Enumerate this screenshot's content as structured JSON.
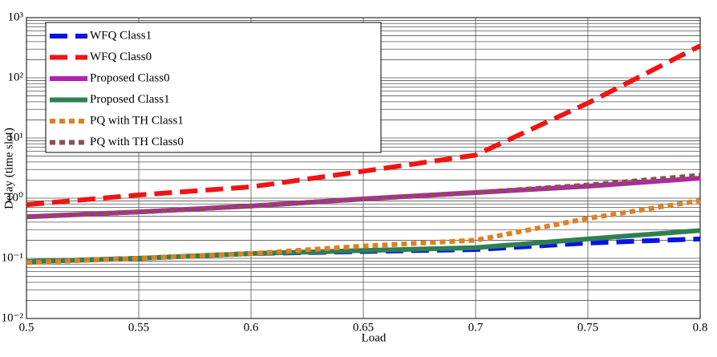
{
  "chart_data": {
    "type": "line",
    "xlabel": "Load",
    "ylabel": "Delay (time slot)",
    "x": [
      0.5,
      0.55,
      0.6,
      0.65,
      0.7,
      0.75,
      0.8
    ],
    "xlim": [
      0.5,
      0.8
    ],
    "xticks": [
      0.5,
      0.55,
      0.6,
      0.65,
      0.7,
      0.75,
      0.8
    ],
    "ylim": [
      0.01,
      1000
    ],
    "log_y": true,
    "grid": true,
    "minor_grid": true,
    "legend": "upper left",
    "yticks": [
      {
        "value": 0.01,
        "label": "10⁻²"
      },
      {
        "value": 0.1,
        "label": "10⁻¹"
      },
      {
        "value": 1,
        "label": "10⁰"
      },
      {
        "value": 10,
        "label": "10¹"
      },
      {
        "value": 100,
        "label": "10²"
      },
      {
        "value": 1000,
        "label": "10³"
      }
    ],
    "series": [
      {
        "name": "WFQ Class1",
        "color": "#0a14e6",
        "style": "dashed",
        "values": [
          0.088,
          0.1,
          0.12,
          0.13,
          0.14,
          0.18,
          0.21
        ]
      },
      {
        "name": "WFQ Class0",
        "color": "#f01414",
        "style": "dashed",
        "values": [
          0.78,
          1.13,
          1.54,
          2.8,
          5.2,
          38,
          340
        ]
      },
      {
        "name": "Proposed Class0",
        "color": "#b420b4",
        "style": "solid",
        "values": [
          0.49,
          0.59,
          0.74,
          0.97,
          1.24,
          1.58,
          2.15
        ]
      },
      {
        "name": "Proposed Class1",
        "color": "#2e8050",
        "style": "solid",
        "values": [
          0.088,
          0.1,
          0.12,
          0.135,
          0.15,
          0.21,
          0.29
        ]
      },
      {
        "name": "PQ with TH Class1",
        "color": "#e08020",
        "style": "dotted",
        "values": [
          0.085,
          0.1,
          0.12,
          0.16,
          0.2,
          0.46,
          0.91
        ]
      },
      {
        "name": "PQ with TH Class0",
        "color": "#8a5050",
        "style": "dotted",
        "values": [
          0.49,
          0.59,
          0.74,
          0.97,
          1.24,
          1.65,
          2.4
        ]
      }
    ]
  }
}
